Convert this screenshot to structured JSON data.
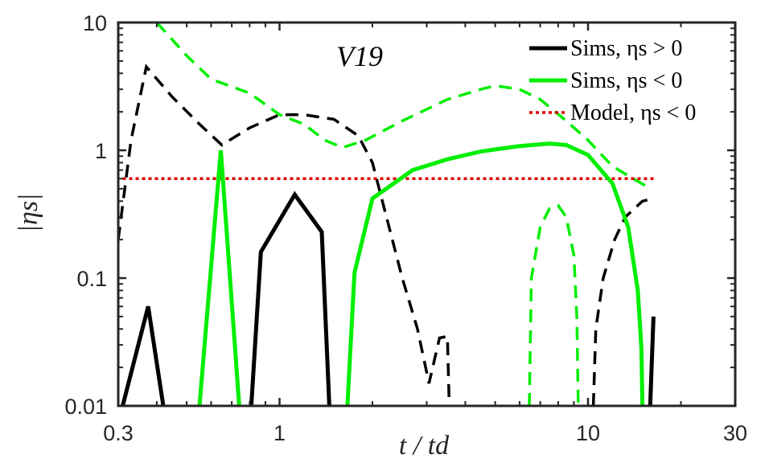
{
  "chart_data": {
    "type": "line",
    "title": "",
    "annotation": "V19",
    "xlabel": "t / td",
    "ylabel": "|ηs|",
    "xscale": "log",
    "yscale": "log",
    "xlim": [
      0.3,
      30
    ],
    "ylim": [
      0.01,
      10
    ],
    "xticks": [
      0.3,
      1,
      10,
      30
    ],
    "xtick_labels": [
      "0.3",
      "1",
      "10",
      "30"
    ],
    "yticks": [
      0.01,
      0.1,
      1,
      10
    ],
    "ytick_labels": [
      "0.01",
      "0.1",
      "1",
      "10"
    ],
    "legend_position": "top-right",
    "colors": {
      "black": "#000000",
      "green": "#00ee00",
      "red": "#dd0000",
      "axis": "#262626"
    },
    "series": [
      {
        "name": "Sims, ηs > 0",
        "legend_label": "Sims,",
        "legend_math": "ηs > 0",
        "color": "#000000",
        "style": "solid",
        "in_legend": true,
        "segments": [
          [
            [
              0.31,
              0.01
            ],
            [
              0.375,
              0.06
            ],
            [
              0.42,
              0.01
            ]
          ],
          [
            [
              0.81,
              0.01
            ],
            [
              0.87,
              0.16
            ],
            [
              1.12,
              0.45
            ],
            [
              1.37,
              0.23
            ],
            [
              1.45,
              0.01
            ]
          ],
          [
            [
              15.9,
              0.01
            ],
            [
              16.3,
              0.05
            ]
          ]
        ]
      },
      {
        "name": "Sims, ηs < 0",
        "legend_label": "Sims,",
        "legend_math": "ηs < 0",
        "color": "#00ee00",
        "style": "solid",
        "in_legend": true,
        "segments": [
          [
            [
              0.55,
              0.01
            ],
            [
              0.645,
              1.0
            ],
            [
              0.74,
              0.01
            ]
          ],
          [
            [
              1.66,
              0.01
            ],
            [
              1.75,
              0.11
            ],
            [
              2.0,
              0.42
            ],
            [
              2.7,
              0.7
            ],
            [
              3.5,
              0.85
            ],
            [
              4.5,
              0.98
            ],
            [
              6.0,
              1.08
            ],
            [
              7.5,
              1.13
            ],
            [
              8.5,
              1.1
            ],
            [
              10.0,
              0.92
            ],
            [
              12.0,
              0.55
            ],
            [
              13.5,
              0.25
            ],
            [
              14.5,
              0.08
            ],
            [
              14.9,
              0.028
            ],
            [
              15.0,
              0.01
            ]
          ]
        ]
      },
      {
        "name": "Model, ηs < 0",
        "legend_label": "Model,",
        "legend_math": "ηs < 0",
        "color": "#dd0000",
        "style": "dotted",
        "in_legend": true,
        "segments": [
          [
            [
              0.31,
              0.6
            ],
            [
              16.5,
              0.6
            ]
          ]
        ]
      },
      {
        "name": "Sims, ηs > 0 (dashed)",
        "color": "#000000",
        "style": "dashed",
        "in_legend": false,
        "segments": [
          [
            [
              0.3,
              0.2
            ],
            [
              0.33,
              1.2
            ],
            [
              0.37,
              4.5
            ],
            [
              0.45,
              2.6
            ],
            [
              0.55,
              1.6
            ],
            [
              0.65,
              1.1
            ],
            [
              0.8,
              1.5
            ],
            [
              1.0,
              1.9
            ],
            [
              1.2,
              1.9
            ],
            [
              1.5,
              1.75
            ],
            [
              1.8,
              1.3
            ],
            [
              2.0,
              0.8
            ],
            [
              2.2,
              0.33
            ],
            [
              2.5,
              0.1
            ],
            [
              2.8,
              0.04
            ],
            [
              3.05,
              0.015
            ],
            [
              3.3,
              0.034
            ],
            [
              3.5,
              0.035
            ],
            [
              3.55,
              0.01
            ]
          ],
          [
            [
              10.4,
              0.01
            ],
            [
              10.6,
              0.04
            ],
            [
              11.2,
              0.1
            ],
            [
              12.2,
              0.2
            ],
            [
              13.2,
              0.3
            ],
            [
              15.0,
              0.4
            ],
            [
              16.3,
              0.42
            ]
          ]
        ]
      },
      {
        "name": "Sims, ηs < 0 (dashed)",
        "color": "#00ee00",
        "style": "dashed",
        "in_legend": false,
        "segments": [
          [
            [
              0.4,
              10.0
            ],
            [
              0.5,
              5.5
            ],
            [
              0.6,
              3.6
            ],
            [
              0.8,
              2.8
            ],
            [
              1.0,
              1.9
            ],
            [
              1.2,
              1.6
            ],
            [
              1.4,
              1.2
            ],
            [
              1.6,
              1.05
            ],
            [
              1.9,
              1.2
            ],
            [
              2.5,
              1.7
            ],
            [
              3.5,
              2.5
            ],
            [
              4.5,
              3.0
            ],
            [
              5.0,
              3.2
            ],
            [
              6.0,
              3.0
            ],
            [
              7.0,
              2.5
            ],
            [
              8.5,
              1.7
            ],
            [
              10.0,
              1.2
            ],
            [
              12.0,
              0.75
            ],
            [
              14.0,
              0.6
            ],
            [
              16.0,
              0.5
            ]
          ],
          [
            [
              6.45,
              0.01
            ],
            [
              6.55,
              0.1
            ],
            [
              7.0,
              0.25
            ],
            [
              7.5,
              0.35
            ],
            [
              8.0,
              0.37
            ],
            [
              8.5,
              0.3
            ],
            [
              9.0,
              0.15
            ],
            [
              9.2,
              0.05
            ],
            [
              9.3,
              0.01
            ]
          ]
        ]
      }
    ]
  }
}
